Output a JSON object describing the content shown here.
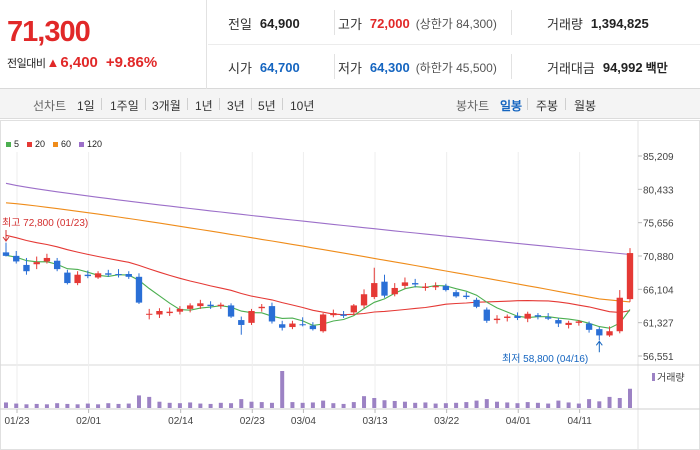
{
  "price": {
    "current": "71,300",
    "change_label": "전일대비",
    "change_arrow": "▲",
    "change_value": "6,400",
    "change_pct": "+9.86%"
  },
  "stats": {
    "prev_close_label": "전일",
    "prev_close": "64,900",
    "high_label": "고가",
    "high": "72,000",
    "upper_limit": "(상한가 84,300)",
    "volume_label": "거래량",
    "volume": "1,394,825",
    "open_label": "시가",
    "open": "64,700",
    "low_label": "저가",
    "low": "64,300",
    "lower_limit": "(하한가 45,500)",
    "turnover_label": "거래대금",
    "turnover": "94,992",
    "turnover_unit": "백만"
  },
  "toolbar": {
    "line_label": "선차트",
    "line_periods": [
      "1일",
      "1주일",
      "3개월",
      "1년",
      "3년",
      "5년",
      "10년"
    ],
    "candle_label": "봉차트",
    "candle_periods": [
      "일봉",
      "주봉",
      "월봉"
    ],
    "candle_active": "일봉"
  },
  "colors": {
    "ma5": "#4caf50",
    "ma20": "#e53935",
    "ma60": "#ef8c1a",
    "ma120": "#9c6fc9",
    "up": "#e53935",
    "down": "#2a6fd6",
    "volume": "#9c82c4"
  },
  "chart_data": {
    "type": "candlestick",
    "legend": [
      {
        "name": "5",
        "color": "#4caf50"
      },
      {
        "name": "20",
        "color": "#e53935"
      },
      {
        "name": "60",
        "color": "#ef8c1a"
      },
      {
        "name": "120",
        "color": "#9c6fc9"
      }
    ],
    "y_ticks": [
      "85,209",
      "80,433",
      "75,656",
      "70,880",
      "66,104",
      "61,327",
      "56,551"
    ],
    "y_range": [
      56551,
      85209
    ],
    "x_ticks": [
      "01/23",
      "02/01",
      "02/14",
      "02/23",
      "03/04",
      "03/13",
      "03/22",
      "04/01",
      "04/11"
    ],
    "x_tick_index": [
      0,
      7,
      16,
      23,
      28,
      35,
      42,
      49,
      55
    ],
    "annotation_high": "최고 72,800 (01/23)",
    "annotation_low": "최저 58,800 (04/16)",
    "volume_label": "거래량",
    "candles": [
      {
        "o": 71400,
        "h": 72800,
        "l": 70800,
        "c": 70900
      },
      {
        "o": 70900,
        "h": 71600,
        "l": 69800,
        "c": 70100
      },
      {
        "o": 69600,
        "h": 70600,
        "l": 68200,
        "c": 68700
      },
      {
        "o": 69700,
        "h": 70800,
        "l": 69000,
        "c": 70000
      },
      {
        "o": 70100,
        "h": 71200,
        "l": 69800,
        "c": 70600
      },
      {
        "o": 70200,
        "h": 70600,
        "l": 68700,
        "c": 69000
      },
      {
        "o": 68500,
        "h": 68900,
        "l": 66800,
        "c": 67000
      },
      {
        "o": 67000,
        "h": 68700,
        "l": 66700,
        "c": 68200
      },
      {
        "o": 68200,
        "h": 68800,
        "l": 67700,
        "c": 68000
      },
      {
        "o": 67800,
        "h": 68700,
        "l": 67600,
        "c": 68400
      },
      {
        "o": 68400,
        "h": 68900,
        "l": 67900,
        "c": 68200
      },
      {
        "o": 68300,
        "h": 69000,
        "l": 67800,
        "c": 68200
      },
      {
        "o": 68300,
        "h": 68700,
        "l": 67600,
        "c": 67900
      },
      {
        "o": 67900,
        "h": 68400,
        "l": 64000,
        "c": 64200
      },
      {
        "o": 62500,
        "h": 63300,
        "l": 61800,
        "c": 62600
      },
      {
        "o": 62500,
        "h": 63400,
        "l": 62000,
        "c": 63000
      },
      {
        "o": 62700,
        "h": 63500,
        "l": 62300,
        "c": 62900
      },
      {
        "o": 62900,
        "h": 63700,
        "l": 62500,
        "c": 63300
      },
      {
        "o": 63300,
        "h": 64100,
        "l": 62800,
        "c": 63800
      },
      {
        "o": 63700,
        "h": 64600,
        "l": 63300,
        "c": 64100
      },
      {
        "o": 63900,
        "h": 64400,
        "l": 63300,
        "c": 63700
      },
      {
        "o": 63700,
        "h": 64200,
        "l": 63300,
        "c": 63900
      },
      {
        "o": 63800,
        "h": 64100,
        "l": 62000,
        "c": 62200
      },
      {
        "o": 61700,
        "h": 62200,
        "l": 59600,
        "c": 61000
      },
      {
        "o": 61300,
        "h": 63300,
        "l": 61000,
        "c": 63000
      },
      {
        "o": 63400,
        "h": 64000,
        "l": 62900,
        "c": 63600
      },
      {
        "o": 63700,
        "h": 64200,
        "l": 61200,
        "c": 61500
      },
      {
        "o": 61100,
        "h": 61600,
        "l": 60200,
        "c": 60600
      },
      {
        "o": 60700,
        "h": 61600,
        "l": 60400,
        "c": 61200
      },
      {
        "o": 61100,
        "h": 62100,
        "l": 60800,
        "c": 61000
      },
      {
        "o": 60900,
        "h": 61400,
        "l": 60200,
        "c": 60400
      },
      {
        "o": 60100,
        "h": 62700,
        "l": 59900,
        "c": 62500
      },
      {
        "o": 62400,
        "h": 63200,
        "l": 62100,
        "c": 62700
      },
      {
        "o": 62500,
        "h": 63000,
        "l": 62000,
        "c": 62300
      },
      {
        "o": 62800,
        "h": 64000,
        "l": 62400,
        "c": 63800
      },
      {
        "o": 63800,
        "h": 66100,
        "l": 63400,
        "c": 65400
      },
      {
        "o": 65000,
        "h": 69200,
        "l": 64700,
        "c": 67000
      },
      {
        "o": 67200,
        "h": 68200,
        "l": 64900,
        "c": 65200
      },
      {
        "o": 65400,
        "h": 67000,
        "l": 65100,
        "c": 66300
      },
      {
        "o": 66600,
        "h": 67800,
        "l": 66200,
        "c": 67100
      },
      {
        "o": 67000,
        "h": 67600,
        "l": 66400,
        "c": 66800
      },
      {
        "o": 66300,
        "h": 67000,
        "l": 65900,
        "c": 66500
      },
      {
        "o": 66400,
        "h": 67100,
        "l": 66000,
        "c": 66600
      },
      {
        "o": 66600,
        "h": 66900,
        "l": 65800,
        "c": 66000
      },
      {
        "o": 65700,
        "h": 66000,
        "l": 64900,
        "c": 65100
      },
      {
        "o": 65200,
        "h": 65700,
        "l": 64700,
        "c": 65000
      },
      {
        "o": 64600,
        "h": 64900,
        "l": 63400,
        "c": 63600
      },
      {
        "o": 63200,
        "h": 63500,
        "l": 61300,
        "c": 61600
      },
      {
        "o": 61700,
        "h": 62400,
        "l": 61200,
        "c": 61900
      },
      {
        "o": 62000,
        "h": 62500,
        "l": 61500,
        "c": 62200
      },
      {
        "o": 62300,
        "h": 62800,
        "l": 61700,
        "c": 62000
      },
      {
        "o": 61900,
        "h": 62900,
        "l": 61400,
        "c": 62600
      },
      {
        "o": 62400,
        "h": 62700,
        "l": 61800,
        "c": 62200
      },
      {
        "o": 62100,
        "h": 62700,
        "l": 61700,
        "c": 61900
      },
      {
        "o": 61700,
        "h": 62000,
        "l": 60700,
        "c": 61200
      },
      {
        "o": 61000,
        "h": 61600,
        "l": 60500,
        "c": 61300
      },
      {
        "o": 61300,
        "h": 61700,
        "l": 60900,
        "c": 61500
      },
      {
        "o": 61200,
        "h": 61500,
        "l": 59900,
        "c": 60300
      },
      {
        "o": 60400,
        "h": 60700,
        "l": 58800,
        "c": 59500
      },
      {
        "o": 59500,
        "h": 60800,
        "l": 59300,
        "c": 60100
      },
      {
        "o": 60100,
        "h": 66000,
        "l": 59800,
        "c": 64900
      },
      {
        "o": 64700,
        "h": 72000,
        "l": 64300,
        "c": 71300
      }
    ],
    "volume": [
      0.15,
      0.12,
      0.1,
      0.11,
      0.1,
      0.13,
      0.11,
      0.1,
      0.12,
      0.1,
      0.13,
      0.11,
      0.12,
      0.34,
      0.3,
      0.17,
      0.14,
      0.13,
      0.15,
      0.12,
      0.11,
      0.14,
      0.13,
      0.24,
      0.17,
      0.16,
      0.14,
      1.0,
      0.16,
      0.14,
      0.15,
      0.2,
      0.13,
      0.11,
      0.16,
      0.32,
      0.27,
      0.21,
      0.19,
      0.17,
      0.14,
      0.15,
      0.12,
      0.13,
      0.14,
      0.16,
      0.2,
      0.24,
      0.17,
      0.15,
      0.13,
      0.16,
      0.14,
      0.12,
      0.2,
      0.15,
      0.12,
      0.24,
      0.18,
      0.3,
      0.27,
      0.52
    ]
  }
}
